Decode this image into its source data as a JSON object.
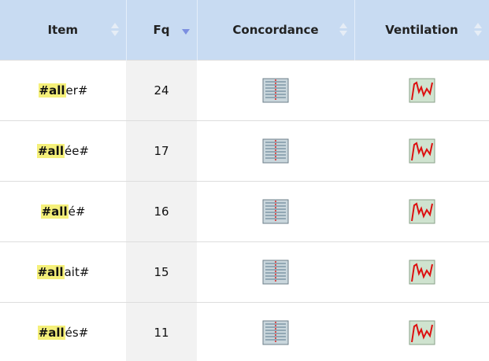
{
  "table": {
    "header": [
      "Item",
      "Fq",
      "Concordance",
      "Ventilation"
    ],
    "rows": [
      {
        "match": "#all",
        "rest": "er#",
        "fq": "24"
      },
      {
        "match": "#all",
        "rest": "ée#",
        "fq": "17"
      },
      {
        "match": "#all",
        "rest": "é#",
        "fq": "16"
      },
      {
        "match": "#all",
        "rest": "ait#",
        "fq": "15"
      },
      {
        "match": "#all",
        "rest": "és#",
        "fq": "11"
      }
    ]
  }
}
